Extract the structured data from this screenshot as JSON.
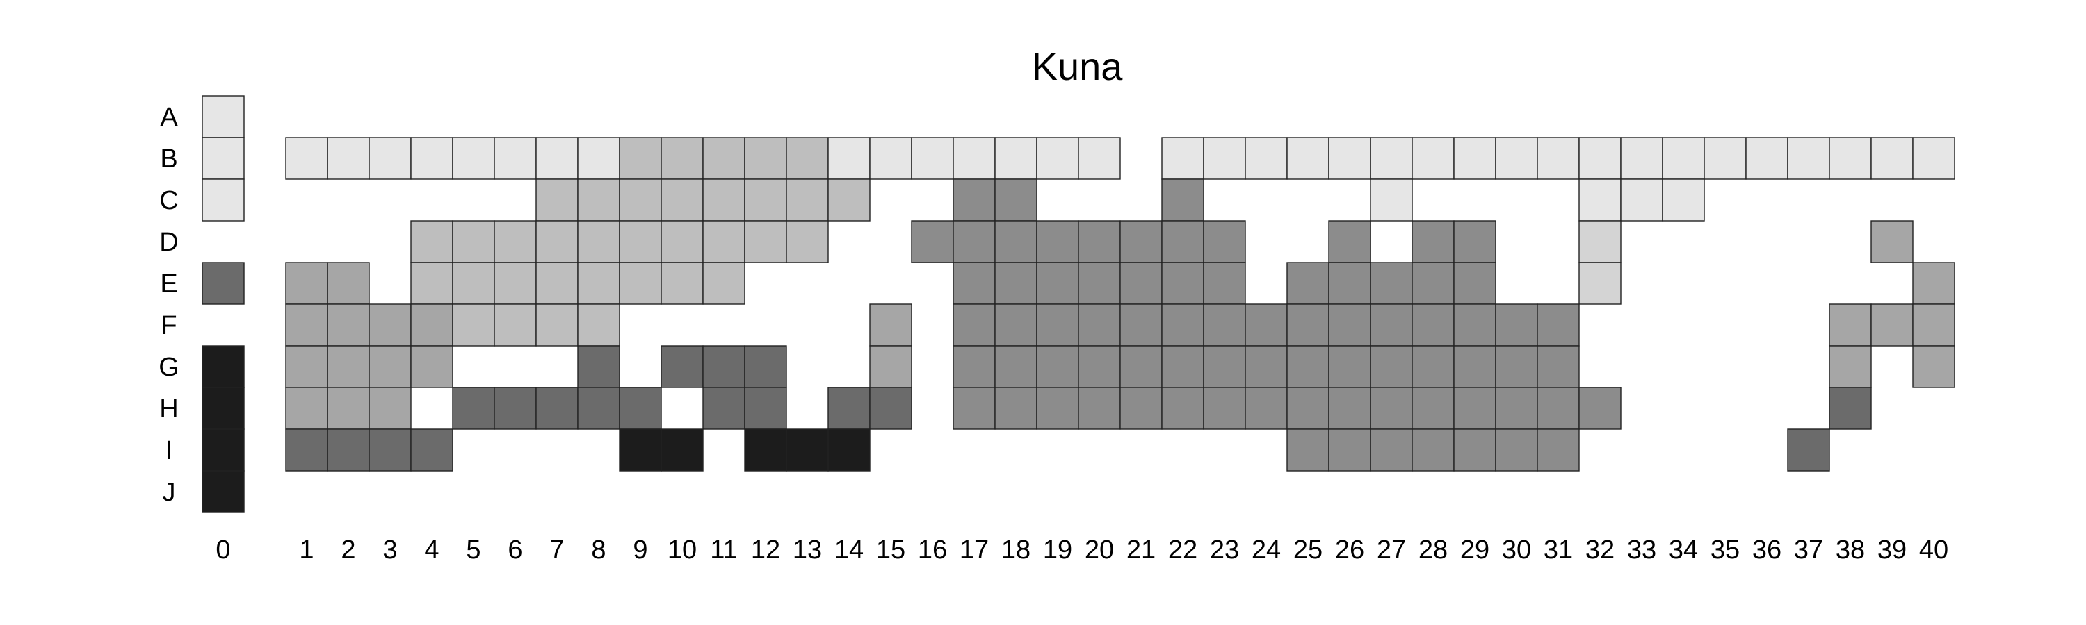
{
  "chart_data": {
    "type": "heatmap",
    "title": "Kuna",
    "rows": [
      "A",
      "B",
      "C",
      "D",
      "E",
      "F",
      "G",
      "H",
      "I",
      "J"
    ],
    "columns": [
      "0",
      "1",
      "2",
      "3",
      "4",
      "5",
      "6",
      "7",
      "8",
      "9",
      "10",
      "11",
      "12",
      "13",
      "14",
      "15",
      "16",
      "17",
      "18",
      "19",
      "20",
      "21",
      "22",
      "23",
      "24",
      "25",
      "26",
      "27",
      "28",
      "29",
      "30",
      "31",
      "32",
      "33",
      "34",
      "35",
      "36",
      "37",
      "38",
      "39",
      "40"
    ],
    "palette": {
      "1": "#e6e6e6",
      "2": "#d4d4d4",
      "3": "#bebebe",
      "4": "#a6a6a6",
      "5": "#8c8c8c",
      "6": "#6b6b6b",
      "7": "#1c1c1c"
    },
    "grid": false,
    "legend": "none",
    "values": [
      [
        1,
        0,
        0,
        0,
        0,
        0,
        0,
        0,
        0,
        0,
        0,
        0,
        0,
        0,
        0,
        0,
        0,
        0,
        0,
        0,
        0,
        0,
        0,
        0,
        0,
        0,
        0,
        0,
        0,
        0,
        0,
        0,
        0,
        0,
        0,
        0,
        0,
        0,
        0,
        0,
        0
      ],
      [
        1,
        1,
        1,
        1,
        1,
        1,
        1,
        1,
        1,
        3,
        3,
        3,
        3,
        3,
        1,
        1,
        1,
        1,
        1,
        1,
        1,
        0,
        1,
        1,
        1,
        1,
        1,
        1,
        1,
        1,
        1,
        1,
        1,
        1,
        1,
        1,
        1,
        1,
        1,
        1,
        1
      ],
      [
        1,
        0,
        0,
        0,
        0,
        0,
        0,
        3,
        3,
        3,
        3,
        3,
        3,
        3,
        3,
        0,
        0,
        5,
        5,
        0,
        0,
        0,
        5,
        0,
        0,
        0,
        0,
        1,
        0,
        0,
        0,
        0,
        1,
        1,
        1,
        0,
        0,
        0,
        0,
        0,
        0
      ],
      [
        0,
        0,
        0,
        0,
        3,
        3,
        3,
        3,
        3,
        3,
        3,
        3,
        3,
        3,
        0,
        0,
        5,
        5,
        5,
        5,
        5,
        5,
        5,
        5,
        0,
        0,
        5,
        0,
        5,
        5,
        0,
        0,
        2,
        0,
        0,
        0,
        0,
        0,
        0,
        4,
        0
      ],
      [
        6,
        4,
        4,
        0,
        3,
        3,
        3,
        3,
        3,
        3,
        3,
        3,
        0,
        0,
        0,
        0,
        0,
        5,
        5,
        5,
        5,
        5,
        5,
        5,
        0,
        5,
        5,
        5,
        5,
        5,
        0,
        0,
        2,
        0,
        0,
        0,
        0,
        0,
        0,
        0,
        4
      ],
      [
        0,
        4,
        4,
        4,
        4,
        3,
        3,
        3,
        3,
        0,
        0,
        0,
        0,
        0,
        0,
        4,
        0,
        5,
        5,
        5,
        5,
        5,
        5,
        5,
        5,
        5,
        5,
        5,
        5,
        5,
        5,
        5,
        0,
        0,
        0,
        0,
        0,
        0,
        4,
        4,
        4
      ],
      [
        7,
        4,
        4,
        4,
        4,
        0,
        0,
        0,
        6,
        0,
        6,
        6,
        6,
        0,
        0,
        4,
        0,
        5,
        5,
        5,
        5,
        5,
        5,
        5,
        5,
        5,
        5,
        5,
        5,
        5,
        5,
        5,
        0,
        0,
        0,
        0,
        0,
        0,
        4,
        0,
        4
      ],
      [
        7,
        4,
        4,
        4,
        0,
        6,
        6,
        6,
        6,
        6,
        0,
        6,
        6,
        0,
        6,
        6,
        0,
        5,
        5,
        5,
        5,
        5,
        5,
        5,
        5,
        5,
        5,
        5,
        5,
        5,
        5,
        5,
        5,
        0,
        0,
        0,
        0,
        0,
        6,
        0,
        0
      ],
      [
        7,
        6,
        6,
        6,
        6,
        0,
        0,
        0,
        0,
        7,
        7,
        0,
        7,
        7,
        7,
        0,
        0,
        0,
        0,
        0,
        0,
        0,
        0,
        0,
        0,
        5,
        5,
        5,
        5,
        5,
        5,
        5,
        0,
        0,
        0,
        0,
        0,
        6,
        0,
        0,
        0
      ],
      [
        7,
        0,
        0,
        0,
        0,
        0,
        0,
        0,
        0,
        0,
        0,
        0,
        0,
        0,
        0,
        0,
        0,
        0,
        0,
        0,
        0,
        0,
        0,
        0,
        0,
        0,
        0,
        0,
        0,
        0,
        0,
        0,
        0,
        0,
        0,
        0,
        0,
        0,
        0,
        0,
        0
      ]
    ]
  }
}
